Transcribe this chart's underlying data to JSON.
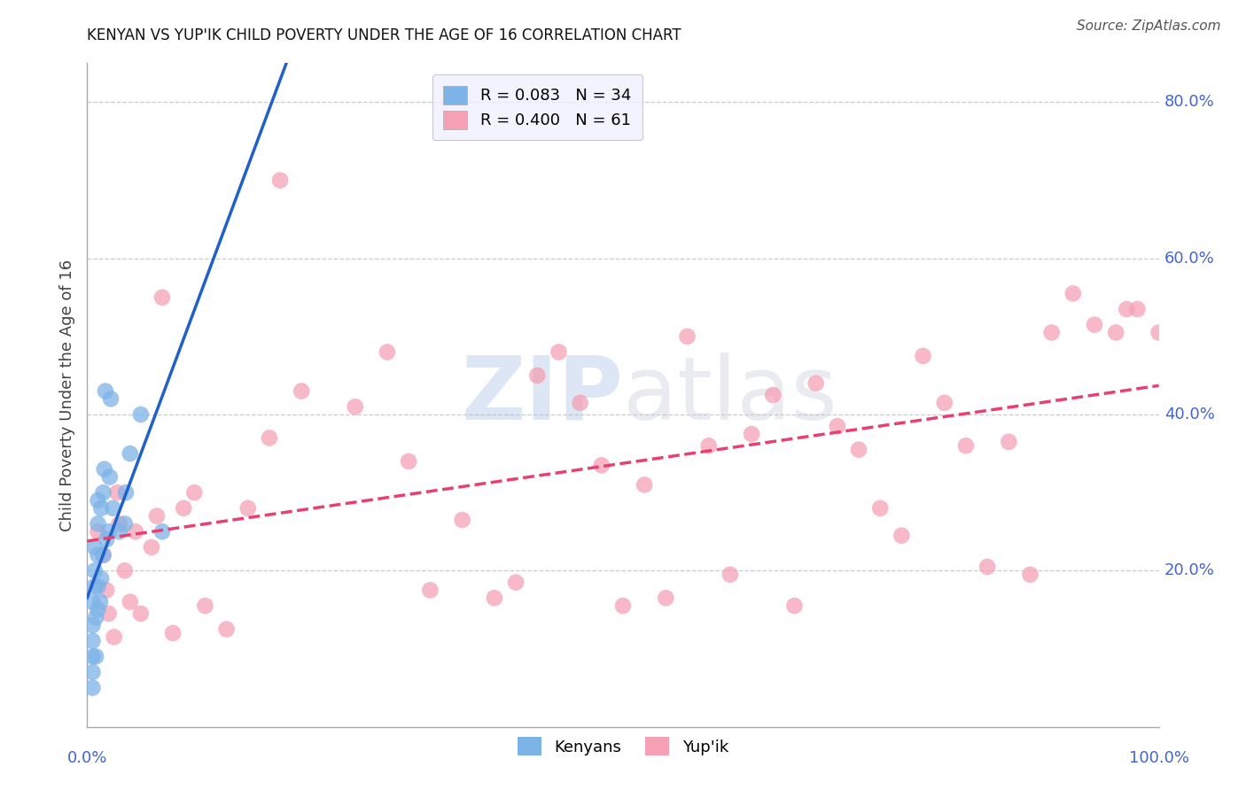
{
  "title": "KENYAN VS YUP'IK CHILD POVERTY UNDER THE AGE OF 16 CORRELATION CHART",
  "source": "Source: ZipAtlas.com",
  "ylabel": "Child Poverty Under the Age of 16",
  "xlim": [
    0.0,
    1.0
  ],
  "ylim": [
    0.0,
    0.85
  ],
  "ytick_positions": [
    0.2,
    0.4,
    0.6,
    0.8
  ],
  "ytick_labels": [
    "20.0%",
    "40.0%",
    "60.0%",
    "80.0%"
  ],
  "kenyan_color": "#7eb3e8",
  "yupik_color": "#f5a0b5",
  "kenyan_line_color": "#2060c8",
  "yupik_line_color": "#e84070",
  "kenyan_R": 0.083,
  "kenyan_N": 34,
  "yupik_R": 0.4,
  "yupik_N": 61,
  "legend_facecolor": "#f0f0ff",
  "tick_label_color": "#4466cc",
  "kenyan_x": [
    0.005,
    0.005,
    0.005,
    0.005,
    0.005,
    0.005,
    0.007,
    0.007,
    0.007,
    0.008,
    0.008,
    0.01,
    0.01,
    0.01,
    0.01,
    0.01,
    0.012,
    0.013,
    0.013,
    0.015,
    0.015,
    0.016,
    0.017,
    0.018,
    0.02,
    0.021,
    0.022,
    0.024,
    0.03,
    0.035,
    0.036,
    0.04,
    0.05,
    0.07
  ],
  "kenyan_y": [
    0.05,
    0.07,
    0.09,
    0.11,
    0.13,
    0.16,
    0.18,
    0.2,
    0.23,
    0.09,
    0.14,
    0.15,
    0.18,
    0.22,
    0.26,
    0.29,
    0.16,
    0.19,
    0.28,
    0.22,
    0.3,
    0.33,
    0.43,
    0.24,
    0.25,
    0.32,
    0.42,
    0.28,
    0.25,
    0.26,
    0.3,
    0.35,
    0.4,
    0.25
  ],
  "yupik_x": [
    0.01,
    0.015,
    0.018,
    0.02,
    0.025,
    0.028,
    0.03,
    0.035,
    0.04,
    0.045,
    0.05,
    0.06,
    0.065,
    0.07,
    0.08,
    0.09,
    0.1,
    0.11,
    0.13,
    0.15,
    0.17,
    0.18,
    0.2,
    0.25,
    0.28,
    0.3,
    0.32,
    0.35,
    0.38,
    0.4,
    0.42,
    0.44,
    0.46,
    0.48,
    0.5,
    0.52,
    0.54,
    0.56,
    0.58,
    0.6,
    0.62,
    0.64,
    0.66,
    0.68,
    0.7,
    0.72,
    0.74,
    0.76,
    0.78,
    0.8,
    0.82,
    0.84,
    0.86,
    0.88,
    0.9,
    0.92,
    0.94,
    0.96,
    0.97,
    0.98,
    1.0
  ],
  "yupik_y": [
    0.25,
    0.22,
    0.175,
    0.145,
    0.115,
    0.3,
    0.26,
    0.2,
    0.16,
    0.25,
    0.145,
    0.23,
    0.27,
    0.55,
    0.12,
    0.28,
    0.3,
    0.155,
    0.125,
    0.28,
    0.37,
    0.7,
    0.43,
    0.41,
    0.48,
    0.34,
    0.175,
    0.265,
    0.165,
    0.185,
    0.45,
    0.48,
    0.415,
    0.335,
    0.155,
    0.31,
    0.165,
    0.5,
    0.36,
    0.195,
    0.375,
    0.425,
    0.155,
    0.44,
    0.385,
    0.355,
    0.28,
    0.245,
    0.475,
    0.415,
    0.36,
    0.205,
    0.365,
    0.195,
    0.505,
    0.555,
    0.515,
    0.505,
    0.535,
    0.535,
    0.505
  ]
}
